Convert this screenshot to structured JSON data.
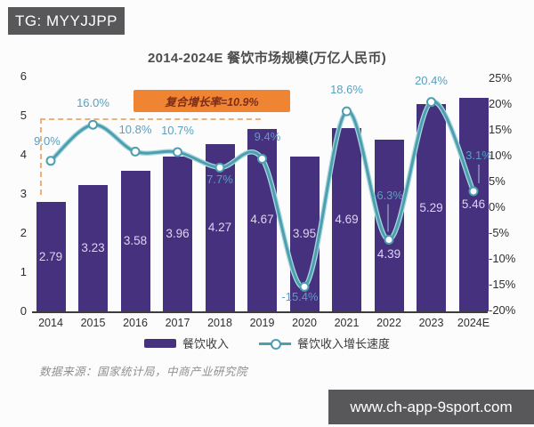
{
  "header": {
    "tg_badge": "TG: MYYJJPP"
  },
  "chart_data": {
    "type": "bar",
    "combo": "bar+line",
    "title": "2014-2024E 餐饮市场规模(万亿人民币)",
    "categories": [
      "2014",
      "2015",
      "2016",
      "2017",
      "2018",
      "2019",
      "2020",
      "2021",
      "2022",
      "2023",
      "2024E"
    ],
    "series": [
      {
        "name": "餐饮收入",
        "type": "bar",
        "unit": "万亿人民币",
        "values": [
          2.79,
          3.23,
          3.58,
          3.96,
          4.27,
          4.67,
          3.95,
          4.69,
          4.39,
          5.29,
          5.46
        ],
        "value_labels": [
          "2.79",
          "3.23",
          "3.58",
          "3.96",
          "4.27",
          "4.67",
          "3.95",
          "4.69",
          "4.39",
          "5.29",
          "5.46"
        ]
      },
      {
        "name": "餐饮收入增长速度",
        "type": "line",
        "unit": "%",
        "values": [
          9.0,
          16.0,
          10.8,
          10.7,
          7.7,
          9.4,
          -15.4,
          18.6,
          -6.3,
          20.4,
          3.1
        ],
        "value_labels": [
          "9.0%",
          "16.0%",
          "10.8%",
          "10.7%",
          "7.7%",
          "9.4%",
          "-15.4%",
          "18.6%",
          "-6.3%",
          "20.4%",
          "3.1%"
        ]
      }
    ],
    "annotation": "复合增长率=10.9%",
    "left_axis_ticks": [
      0,
      1,
      2,
      3,
      4,
      5,
      6
    ],
    "right_axis_ticks_pct": [
      25,
      20,
      15,
      10,
      5,
      0,
      -5,
      -10,
      -15,
      -20
    ],
    "ylim_left": [
      0,
      6
    ],
    "ylim_right_pct": [
      -20,
      25
    ],
    "grid": false,
    "legend_position": "bottom",
    "legend": [
      {
        "label": "餐饮收入"
      },
      {
        "label": "餐饮收入增长速度"
      }
    ]
  },
  "footer": {
    "source": "数据来源：国家统计局，中商产业研究院",
    "watermark": "www.ch-app-9sport.com"
  },
  "colors": {
    "bar": "#46317e",
    "bar-label": "#ddd3f2",
    "line": "#4d9fb0",
    "line-soft": "#a8d8de",
    "pct-label": "#57a0bf",
    "annotation-bg": "#ef8532",
    "annotation-text": "#7e2c18",
    "dash-border": "#ecb079",
    "banner-bg": "#58585a",
    "axis": "#3c3c3c",
    "text": "#3a3a3a",
    "muted": "#8f8f8f"
  }
}
